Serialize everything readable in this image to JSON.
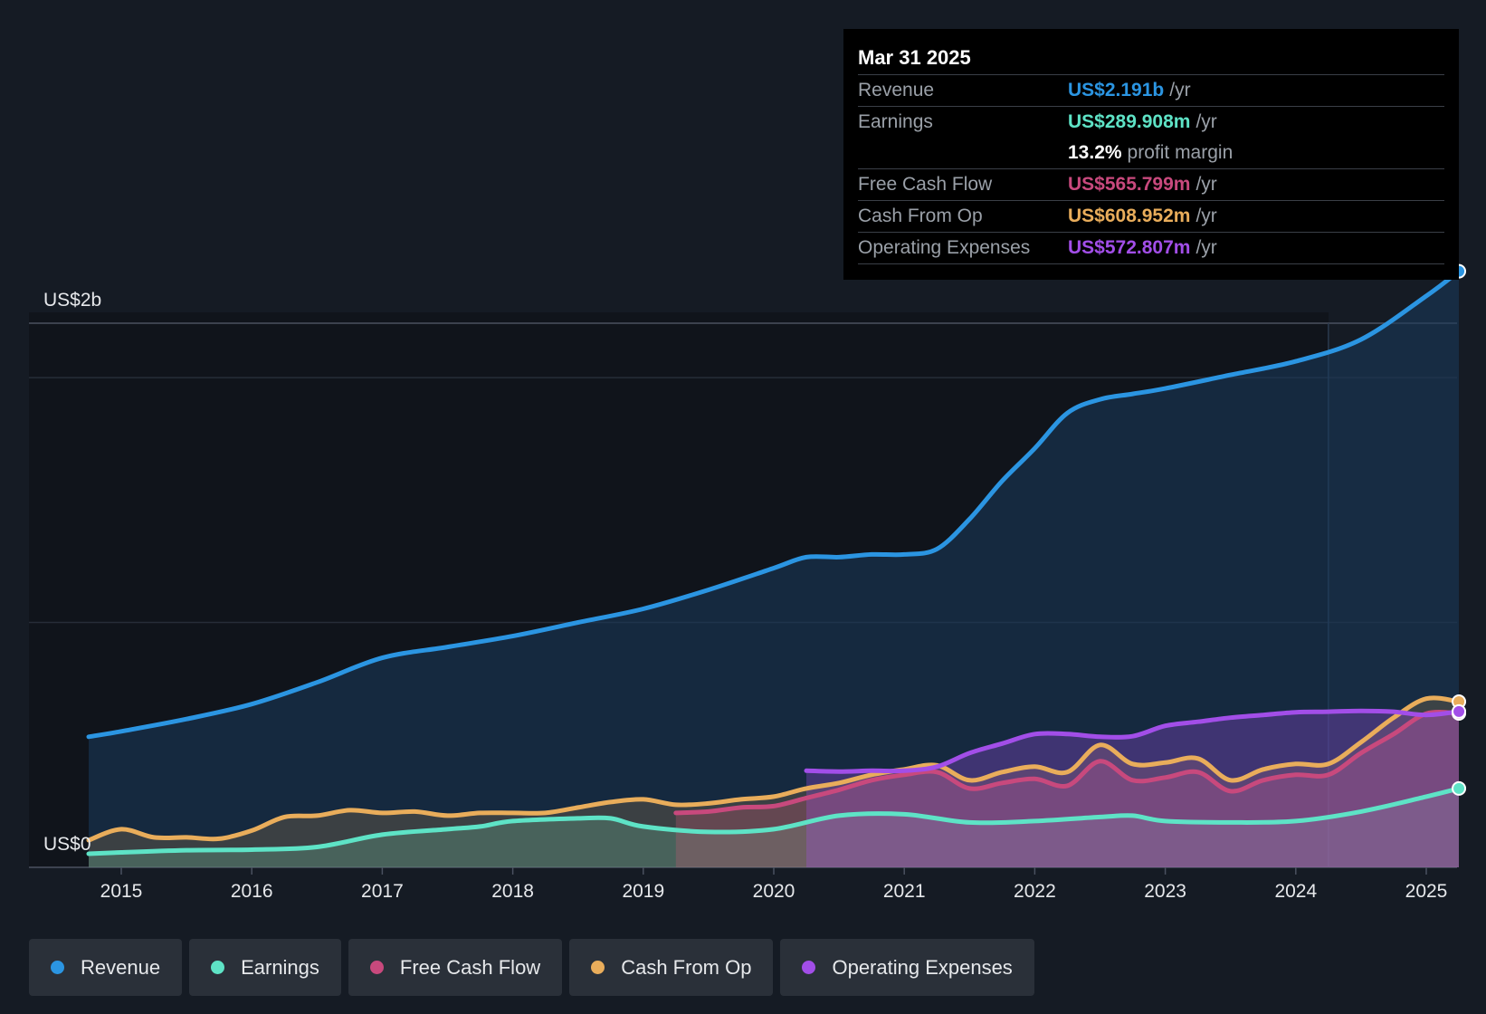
{
  "chart_data": {
    "type": "area",
    "title": "",
    "y_axis_labels": [
      "US$2b",
      "US$0"
    ],
    "ylim": [
      0,
      2.2
    ],
    "x_ticks": [
      "2015",
      "2016",
      "2017",
      "2018",
      "2019",
      "2020",
      "2021",
      "2022",
      "2023",
      "2024",
      "2025"
    ],
    "series": [
      {
        "name": "Revenue",
        "color": "#2b95e2",
        "points": [
          [
            2014.75,
            0.48
          ],
          [
            2015.0,
            0.5
          ],
          [
            2015.5,
            0.545
          ],
          [
            2016.0,
            0.6
          ],
          [
            2016.5,
            0.68
          ],
          [
            2017.0,
            0.77
          ],
          [
            2017.5,
            0.81
          ],
          [
            2018.0,
            0.85
          ],
          [
            2018.5,
            0.9
          ],
          [
            2019.0,
            0.95
          ],
          [
            2019.5,
            1.02
          ],
          [
            2020.0,
            1.1
          ],
          [
            2020.25,
            1.14
          ],
          [
            2020.5,
            1.14
          ],
          [
            2020.75,
            1.15
          ],
          [
            2021.0,
            1.15
          ],
          [
            2021.25,
            1.17
          ],
          [
            2021.5,
            1.28
          ],
          [
            2021.75,
            1.42
          ],
          [
            2022.0,
            1.54
          ],
          [
            2022.25,
            1.67
          ],
          [
            2022.5,
            1.72
          ],
          [
            2022.75,
            1.74
          ],
          [
            2023.0,
            1.76
          ],
          [
            2023.5,
            1.81
          ],
          [
            2024.0,
            1.86
          ],
          [
            2024.5,
            1.94
          ],
          [
            2025.0,
            2.1
          ],
          [
            2025.25,
            2.191
          ]
        ]
      },
      {
        "name": "Earnings",
        "color": "#5ee3c6",
        "points": [
          [
            2014.75,
            0.05
          ],
          [
            2015.0,
            0.055
          ],
          [
            2015.5,
            0.063
          ],
          [
            2016.0,
            0.065
          ],
          [
            2016.5,
            0.075
          ],
          [
            2017.0,
            0.12
          ],
          [
            2017.5,
            0.14
          ],
          [
            2017.75,
            0.15
          ],
          [
            2018.0,
            0.17
          ],
          [
            2018.5,
            0.18
          ],
          [
            2018.75,
            0.18
          ],
          [
            2019.0,
            0.15
          ],
          [
            2019.5,
            0.13
          ],
          [
            2020.0,
            0.14
          ],
          [
            2020.5,
            0.19
          ],
          [
            2021.0,
            0.195
          ],
          [
            2021.5,
            0.165
          ],
          [
            2022.0,
            0.17
          ],
          [
            2022.5,
            0.185
          ],
          [
            2022.75,
            0.19
          ],
          [
            2023.0,
            0.17
          ],
          [
            2023.5,
            0.165
          ],
          [
            2024.0,
            0.17
          ],
          [
            2024.5,
            0.205
          ],
          [
            2025.0,
            0.26
          ],
          [
            2025.25,
            0.2899
          ]
        ]
      },
      {
        "name": "Free Cash Flow",
        "color": "#c8497d",
        "points": [
          [
            2019.25,
            0.2
          ],
          [
            2019.5,
            0.205
          ],
          [
            2019.75,
            0.22
          ],
          [
            2020.0,
            0.225
          ],
          [
            2020.25,
            0.255
          ],
          [
            2020.5,
            0.285
          ],
          [
            2020.75,
            0.32
          ],
          [
            2021.0,
            0.34
          ],
          [
            2021.25,
            0.35
          ],
          [
            2021.5,
            0.29
          ],
          [
            2021.75,
            0.31
          ],
          [
            2022.0,
            0.325
          ],
          [
            2022.25,
            0.3
          ],
          [
            2022.5,
            0.39
          ],
          [
            2022.75,
            0.32
          ],
          [
            2023.0,
            0.33
          ],
          [
            2023.25,
            0.35
          ],
          [
            2023.5,
            0.28
          ],
          [
            2023.75,
            0.32
          ],
          [
            2024.0,
            0.34
          ],
          [
            2024.25,
            0.34
          ],
          [
            2024.5,
            0.42
          ],
          [
            2024.75,
            0.49
          ],
          [
            2025.0,
            0.565
          ],
          [
            2025.25,
            0.5658
          ]
        ]
      },
      {
        "name": "Cash From Op",
        "color": "#e9ad5b",
        "points": [
          [
            2014.75,
            0.1
          ],
          [
            2015.0,
            0.14
          ],
          [
            2015.25,
            0.11
          ],
          [
            2015.5,
            0.11
          ],
          [
            2015.75,
            0.105
          ],
          [
            2016.0,
            0.135
          ],
          [
            2016.25,
            0.185
          ],
          [
            2016.5,
            0.19
          ],
          [
            2016.75,
            0.21
          ],
          [
            2017.0,
            0.2
          ],
          [
            2017.25,
            0.205
          ],
          [
            2017.5,
            0.19
          ],
          [
            2017.75,
            0.2
          ],
          [
            2018.0,
            0.2
          ],
          [
            2018.25,
            0.2
          ],
          [
            2018.5,
            0.22
          ],
          [
            2018.75,
            0.24
          ],
          [
            2019.0,
            0.25
          ],
          [
            2019.25,
            0.23
          ],
          [
            2019.5,
            0.235
          ],
          [
            2019.75,
            0.25
          ],
          [
            2020.0,
            0.26
          ],
          [
            2020.25,
            0.29
          ],
          [
            2020.5,
            0.31
          ],
          [
            2020.75,
            0.34
          ],
          [
            2021.0,
            0.36
          ],
          [
            2021.25,
            0.375
          ],
          [
            2021.5,
            0.32
          ],
          [
            2021.75,
            0.35
          ],
          [
            2022.0,
            0.37
          ],
          [
            2022.25,
            0.35
          ],
          [
            2022.5,
            0.45
          ],
          [
            2022.75,
            0.38
          ],
          [
            2023.0,
            0.385
          ],
          [
            2023.25,
            0.4
          ],
          [
            2023.5,
            0.32
          ],
          [
            2023.75,
            0.36
          ],
          [
            2024.0,
            0.38
          ],
          [
            2024.25,
            0.38
          ],
          [
            2024.5,
            0.46
          ],
          [
            2024.75,
            0.55
          ],
          [
            2025.0,
            0.62
          ],
          [
            2025.25,
            0.609
          ]
        ]
      },
      {
        "name": "Operating Expenses",
        "color": "#a24ee8",
        "points": [
          [
            2020.25,
            0.355
          ],
          [
            2020.5,
            0.352
          ],
          [
            2020.75,
            0.355
          ],
          [
            2021.0,
            0.355
          ],
          [
            2021.25,
            0.37
          ],
          [
            2021.5,
            0.42
          ],
          [
            2021.75,
            0.455
          ],
          [
            2022.0,
            0.49
          ],
          [
            2022.25,
            0.49
          ],
          [
            2022.5,
            0.48
          ],
          [
            2022.75,
            0.482
          ],
          [
            2023.0,
            0.52
          ],
          [
            2023.25,
            0.535
          ],
          [
            2023.5,
            0.55
          ],
          [
            2023.75,
            0.56
          ],
          [
            2024.0,
            0.57
          ],
          [
            2024.25,
            0.572
          ],
          [
            2024.5,
            0.575
          ],
          [
            2024.75,
            0.572
          ],
          [
            2025.0,
            0.56
          ],
          [
            2025.25,
            0.5728
          ]
        ]
      }
    ]
  },
  "tooltip": {
    "date": "Mar 31 2025",
    "rows": [
      {
        "label": "Revenue",
        "value": "US$2.191b",
        "unit": "/yr",
        "color": "#2b95e2"
      },
      {
        "label": "Earnings",
        "value": "US$289.908m",
        "unit": "/yr",
        "color": "#5ee3c6"
      },
      {
        "label": "",
        "value": "13.2%",
        "unit": "profit margin",
        "color": "#ffffff"
      },
      {
        "label": "Free Cash Flow",
        "value": "US$565.799m",
        "unit": "/yr",
        "color": "#c8497d"
      },
      {
        "label": "Cash From Op",
        "value": "US$608.952m",
        "unit": "/yr",
        "color": "#e9ad5b"
      },
      {
        "label": "Operating Expenses",
        "value": "US$572.807m",
        "unit": "/yr",
        "color": "#a24ee8"
      }
    ]
  },
  "legend": [
    {
      "label": "Revenue",
      "color": "#2b95e2"
    },
    {
      "label": "Earnings",
      "color": "#5ee3c6"
    },
    {
      "label": "Free Cash Flow",
      "color": "#c8497d"
    },
    {
      "label": "Cash From Op",
      "color": "#e9ad5b"
    },
    {
      "label": "Operating Expenses",
      "color": "#a24ee8"
    }
  ]
}
